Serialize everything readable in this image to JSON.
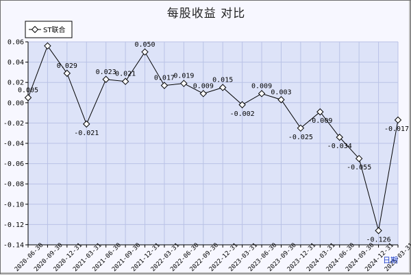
{
  "chart_data": {
    "type": "line",
    "title": "每股收益 对比",
    "xlabel": "日期",
    "ylabel": "",
    "ylim": [
      -0.14,
      0.06
    ],
    "yticks": [
      0.06,
      0.04,
      0.02,
      0.0,
      -0.02,
      -0.04,
      -0.06,
      -0.08,
      -0.1,
      -0.12,
      -0.14
    ],
    "ytick_labels": [
      "0.06",
      "0.04",
      "0.02",
      "0.00",
      "-0.02",
      "-0.04",
      "-0.06",
      "-0.08",
      "-0.10",
      "-0.12",
      "-0.14"
    ],
    "grid": true,
    "legend": "top-left",
    "colors": {
      "line": "#000000",
      "plot_bg": "#dde3f8",
      "grid": "#b9c2e6",
      "accent": "#1a3cc8"
    },
    "categories": [
      "2020-06-30",
      "2020-09-30",
      "2020-12-31",
      "2021-03-31",
      "2021-06-30",
      "2021-09-30",
      "2021-12-31",
      "2022-03-31",
      "2022-06-30",
      "2022-09-30",
      "2022-12-31",
      "2023-03-31",
      "2023-06-30",
      "2023-09-30",
      "2023-12-31",
      "2024-03-31",
      "2024-06-30",
      "2024-09-30",
      "2024-12-31",
      "2025-03-31"
    ],
    "series": [
      {
        "name": "ST联合",
        "values": [
          0.005,
          0.056,
          0.029,
          -0.021,
          0.023,
          0.021,
          0.05,
          0.017,
          0.019,
          0.009,
          0.015,
          -0.002,
          0.009,
          0.003,
          -0.025,
          -0.009,
          -0.034,
          -0.055,
          -0.126,
          -0.017
        ],
        "labels": [
          "0.005",
          "",
          "0.029",
          "-0.021",
          "0.023",
          "0.021",
          "0.050",
          "0.017",
          "0.019",
          "0.009",
          "0.015",
          "-0.002",
          "0.009",
          "0.003",
          "-0.025",
          "-0.009",
          "-0.034",
          "-0.055",
          "-0.126",
          "-0.017"
        ]
      }
    ]
  }
}
